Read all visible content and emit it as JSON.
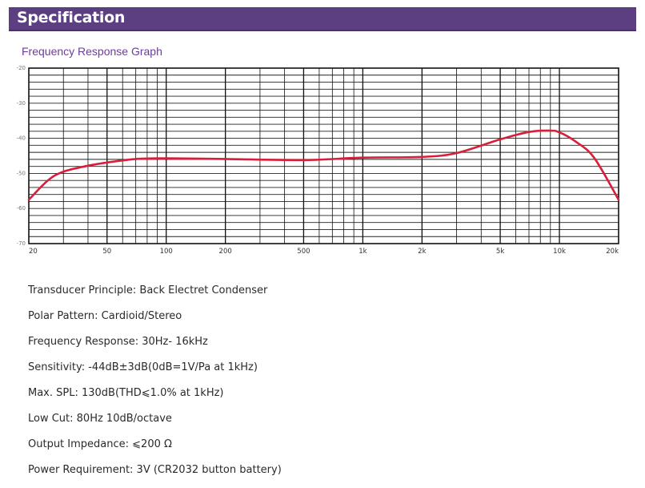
{
  "header": {
    "title": "Specification"
  },
  "graph": {
    "title": "Frequency Response Graph"
  },
  "chart_data": {
    "type": "line",
    "title": "Frequency Response Graph",
    "x_scale": "log",
    "xlim": [
      20,
      20000
    ],
    "ylim": [
      -70,
      -20
    ],
    "x_ticks": [
      {
        "value": 20,
        "label": "20"
      },
      {
        "value": 50,
        "label": "50"
      },
      {
        "value": 100,
        "label": "100"
      },
      {
        "value": 200,
        "label": "200"
      },
      {
        "value": 500,
        "label": "500"
      },
      {
        "value": 1000,
        "label": "1k"
      },
      {
        "value": 2000,
        "label": "2k"
      },
      {
        "value": 5000,
        "label": "5k"
      },
      {
        "value": 10000,
        "label": "10k"
      },
      {
        "value": 20000,
        "label": "20k"
      }
    ],
    "y_ticks": [
      {
        "value": -20,
        "label": "-20"
      },
      {
        "value": -30,
        "label": "-30"
      },
      {
        "value": -40,
        "label": "-40"
      },
      {
        "value": -50,
        "label": "-50"
      },
      {
        "value": -60,
        "label": "-60"
      },
      {
        "value": -70,
        "label": "-70"
      }
    ],
    "grid": true,
    "line_color": "#d81e3a",
    "series": [
      {
        "x": [
          20,
          25,
          30,
          40,
          50,
          70,
          100,
          200,
          500,
          1000,
          2000,
          3000,
          5000,
          7000,
          9000,
          10000,
          12000,
          15000,
          20000
        ],
        "y": [
          -57.5,
          -52.0,
          -49.5,
          -47.8,
          -46.9,
          -45.9,
          -45.7,
          -45.9,
          -46.2,
          -45.5,
          -45.3,
          -44.2,
          -40.3,
          -38.2,
          -37.8,
          -38.3,
          -40.8,
          -45.5,
          -57.5
        ]
      }
    ]
  },
  "specs": [
    "Transducer Principle: Back Electret Condenser",
    "Polar Pattern: Cardioid/Stereo",
    "Frequency Response: 30Hz- 16kHz",
    "Sensitivity: -44dB±3dB(0dB=1V/Pa at 1kHz)",
    "Max. SPL: 130dB(THD⩽1.0% at 1kHz)",
    "Low Cut: 80Hz 10dB/octave",
    "Output Impedance: ⩽200 Ω",
    "Power Requirement: 3V (CR2032 button battery)"
  ]
}
